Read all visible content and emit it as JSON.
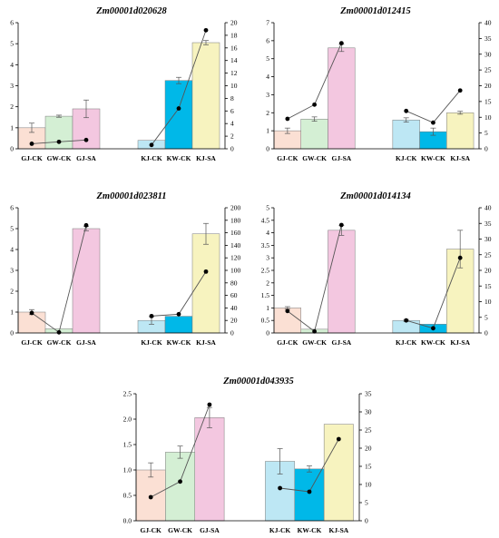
{
  "colors": {
    "GJ-CK": "#fbe0d4",
    "GW-CK": "#d4efd4",
    "GJ-SA": "#f3c7e0",
    "KJ-CK": "#bde7f4",
    "KW-CK": "#00b8e8",
    "KJ-SA": "#f7f3bf",
    "line": "#000000"
  },
  "chart_data": [
    {
      "type": "bar",
      "title": "Zm00001d020628",
      "categories": [
        "GJ-CK",
        "GW-CK",
        "GJ-SA",
        "KJ-CK",
        "KW-CK",
        "KJ-SA"
      ],
      "series": [
        {
          "axis": "left",
          "values": [
            1.0,
            1.55,
            1.9,
            0.4,
            3.25,
            5.05
          ],
          "errors": [
            0.22,
            0.05,
            0.42,
            0.0,
            0.15,
            0.1
          ]
        },
        {
          "axis": "right",
          "type": "line",
          "values": [
            0.8,
            1.1,
            1.4,
            0.6,
            6.4,
            18.8
          ]
        }
      ],
      "ylim": [
        0,
        6
      ],
      "yticks": [
        0,
        1,
        2,
        3,
        4,
        5,
        6
      ],
      "y2lim": [
        0,
        20
      ],
      "y2ticks": [
        0,
        2,
        4,
        6,
        8,
        10,
        12,
        14,
        16,
        18,
        20
      ]
    },
    {
      "type": "bar",
      "title": "Zm00001d012415",
      "categories": [
        "GJ-CK",
        "GW-CK",
        "GJ-SA",
        "KJ-CK",
        "KW-CK",
        "KJ-SA"
      ],
      "series": [
        {
          "axis": "left",
          "values": [
            1.0,
            1.65,
            5.6,
            1.6,
            0.95,
            2.0
          ],
          "errors": [
            0.15,
            0.12,
            0.2,
            0.12,
            0.2,
            0.08
          ]
        },
        {
          "axis": "right",
          "type": "line",
          "values": [
            9.5,
            14.0,
            33.5,
            12.0,
            8.3,
            18.5
          ]
        }
      ],
      "ylim": [
        0,
        7
      ],
      "yticks": [
        0,
        1,
        2,
        3,
        4,
        5,
        6,
        7
      ],
      "y2lim": [
        0,
        40
      ],
      "y2ticks": [
        0,
        5,
        10,
        15,
        20,
        25,
        30,
        35,
        40
      ]
    },
    {
      "type": "bar",
      "title": "Zm00001d023811",
      "categories": [
        "GJ-CK",
        "GW-CK",
        "GJ-SA",
        "KJ-CK",
        "KW-CK",
        "KJ-SA"
      ],
      "series": [
        {
          "axis": "left",
          "values": [
            1.0,
            0.2,
            5.0,
            0.6,
            0.8,
            4.75
          ],
          "errors": [
            0.12,
            0.0,
            0.1,
            0.18,
            0.0,
            0.5
          ]
        },
        {
          "axis": "right",
          "type": "line",
          "values": [
            32,
            1,
            172,
            27,
            30,
            98
          ]
        }
      ],
      "ylim": [
        0,
        6
      ],
      "yticks": [
        0,
        1,
        2,
        3,
        4,
        5,
        6
      ],
      "y2lim": [
        0,
        200
      ],
      "y2ticks": [
        0,
        20,
        40,
        60,
        80,
        100,
        120,
        140,
        160,
        180,
        200
      ]
    },
    {
      "type": "bar",
      "title": "Zm00001d014134",
      "categories": [
        "GJ-CK",
        "GW-CK",
        "GJ-SA",
        "KJ-CK",
        "KW-CK",
        "KJ-SA"
      ],
      "series": [
        {
          "axis": "left",
          "values": [
            1.0,
            0.15,
            4.1,
            0.5,
            0.35,
            3.35
          ],
          "errors": [
            0.05,
            0.0,
            0.2,
            0.04,
            0.0,
            0.75
          ]
        },
        {
          "axis": "right",
          "type": "line",
          "values": [
            7,
            0.5,
            34.5,
            4,
            1.5,
            24
          ]
        }
      ],
      "ylim": [
        0,
        5
      ],
      "yticks": [
        0,
        0.5,
        1,
        1.5,
        2,
        2.5,
        3,
        3.5,
        4,
        4.5,
        5
      ],
      "y2lim": [
        0,
        40
      ],
      "y2ticks": [
        0,
        5,
        10,
        15,
        20,
        25,
        30,
        35,
        40
      ]
    },
    {
      "type": "bar",
      "title": "Zm00001d043935",
      "categories": [
        "GJ-CK",
        "GW-CK",
        "GJ-SA",
        "KJ-CK",
        "KW-CK",
        "KJ-SA"
      ],
      "series": [
        {
          "axis": "left",
          "values": [
            1.0,
            1.35,
            2.03,
            1.17,
            1.02,
            1.9
          ],
          "errors": [
            0.14,
            0.12,
            0.2,
            0.25,
            0.06,
            0.0
          ]
        },
        {
          "axis": "right",
          "type": "line",
          "values": [
            6.5,
            10.8,
            32,
            9,
            8,
            22.5
          ]
        }
      ],
      "ylim": [
        0,
        2.5
      ],
      "yticks": [
        0,
        0.5,
        1,
        1.5,
        2,
        2.5
      ],
      "y2lim": [
        0,
        35
      ],
      "y2ticks": [
        0,
        5,
        10,
        15,
        20,
        25,
        30,
        35
      ]
    }
  ]
}
